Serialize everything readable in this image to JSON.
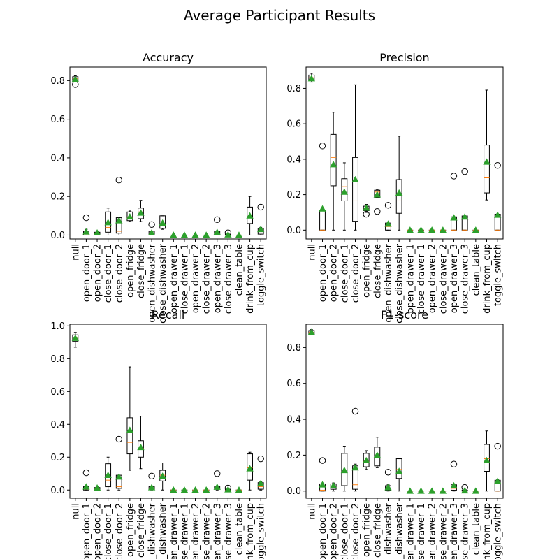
{
  "suptitle": "Average Participant Results",
  "colors": {
    "median": "#ff7f0e",
    "mean": "#2ca02c",
    "box": "#000000"
  },
  "categories": [
    "null",
    "open_door_1",
    "open_door_2",
    "close_door_1",
    "close_door_2",
    "open_fridge",
    "close_fridge",
    "open_dishwasher",
    "close_dishwasher",
    "open_drawer_1",
    "close_drawer_1",
    "open_drawer_2",
    "close_drawer_2",
    "open_drawer_3",
    "close_drawer_3",
    "clean_table",
    "drink_from_cup",
    "toggle_switch"
  ],
  "chart_data": [
    {
      "type": "boxplot",
      "title": "Accuracy",
      "ylim": [
        -0.02,
        0.87
      ],
      "yticks": [
        0.0,
        0.2,
        0.4,
        0.6,
        0.8
      ],
      "ytick_labels": [
        "0.0",
        "0.2",
        "0.4",
        "0.6",
        "0.8"
      ],
      "boxes": [
        {
          "q1": 0.8,
          "med": 0.81,
          "q3": 0.82,
          "wlo": 0.795,
          "whi": 0.825,
          "mean": 0.807,
          "fliers": [
            0.78
          ]
        },
        {
          "q1": 0.0,
          "med": 0.005,
          "q3": 0.02,
          "wlo": 0.0,
          "whi": 0.03,
          "mean": 0.017,
          "fliers": [
            0.09
          ]
        },
        {
          "q1": 0.005,
          "med": 0.01,
          "q3": 0.015,
          "wlo": 0.0,
          "whi": 0.02,
          "mean": 0.012,
          "fliers": []
        },
        {
          "q1": 0.015,
          "med": 0.04,
          "q3": 0.12,
          "wlo": 0.0,
          "whi": 0.14,
          "mean": 0.065,
          "fliers": []
        },
        {
          "q1": 0.01,
          "med": 0.02,
          "q3": 0.09,
          "wlo": 0.0,
          "whi": 0.09,
          "mean": 0.075,
          "fliers": [
            0.285
          ]
        },
        {
          "q1": 0.075,
          "med": 0.09,
          "q3": 0.12,
          "wlo": 0.07,
          "whi": 0.125,
          "mean": 0.095,
          "fliers": []
        },
        {
          "q1": 0.085,
          "med": 0.12,
          "q3": 0.14,
          "wlo": 0.07,
          "whi": 0.18,
          "mean": 0.115,
          "fliers": []
        },
        {
          "q1": 0.005,
          "med": 0.01,
          "q3": 0.02,
          "wlo": 0.0,
          "whi": 0.02,
          "mean": 0.012,
          "fliers": [
            0.055
          ]
        },
        {
          "q1": 0.035,
          "med": 0.05,
          "q3": 0.1,
          "wlo": 0.03,
          "whi": 0.1,
          "mean": 0.063,
          "fliers": []
        },
        {
          "q1": 0.0,
          "med": 0.0,
          "q3": 0.0,
          "wlo": 0.0,
          "whi": 0.0,
          "mean": 0.0,
          "fliers": []
        },
        {
          "q1": 0.0,
          "med": 0.0,
          "q3": 0.0,
          "wlo": 0.0,
          "whi": 0.0,
          "mean": 0.0,
          "fliers": []
        },
        {
          "q1": 0.0,
          "med": 0.0,
          "q3": 0.0,
          "wlo": 0.0,
          "whi": 0.0,
          "mean": 0.0,
          "fliers": []
        },
        {
          "q1": 0.0,
          "med": 0.0,
          "q3": 0.0,
          "wlo": 0.0,
          "whi": 0.0,
          "mean": 0.0,
          "fliers": []
        },
        {
          "q1": 0.005,
          "med": 0.01,
          "q3": 0.02,
          "wlo": 0.0,
          "whi": 0.02,
          "mean": 0.015,
          "fliers": [
            0.08
          ]
        },
        {
          "q1": 0.0,
          "med": 0.0,
          "q3": 0.005,
          "wlo": 0.0,
          "whi": 0.005,
          "mean": 0.002,
          "fliers": [
            0.012
          ]
        },
        {
          "q1": 0.0,
          "med": 0.0,
          "q3": 0.0,
          "wlo": 0.0,
          "whi": 0.0,
          "mean": 0.0,
          "fliers": []
        },
        {
          "q1": 0.06,
          "med": 0.09,
          "q3": 0.145,
          "wlo": 0.0,
          "whi": 0.2,
          "mean": 0.1,
          "fliers": []
        },
        {
          "q1": 0.005,
          "med": 0.02,
          "q3": 0.035,
          "wlo": 0.0,
          "whi": 0.04,
          "mean": 0.03,
          "fliers": [
            0.145
          ]
        }
      ]
    },
    {
      "type": "boxplot",
      "title": "Precision",
      "ylim": [
        -0.05,
        0.92
      ],
      "yticks": [
        0.0,
        0.2,
        0.4,
        0.6,
        0.8
      ],
      "ytick_labels": [
        "0.0",
        "0.2",
        "0.4",
        "0.6",
        "0.8"
      ],
      "boxes": [
        {
          "q1": 0.845,
          "med": 0.86,
          "q3": 0.875,
          "wlo": 0.835,
          "whi": 0.885,
          "mean": 0.855,
          "fliers": []
        },
        {
          "q1": 0.0,
          "med": 0.0,
          "q3": 0.11,
          "wlo": 0.0,
          "whi": 0.12,
          "mean": 0.12,
          "fliers": [
            0.475
          ]
        },
        {
          "q1": 0.25,
          "med": 0.41,
          "q3": 0.54,
          "wlo": 0.0,
          "whi": 0.665,
          "mean": 0.37,
          "fliers": []
        },
        {
          "q1": 0.165,
          "med": 0.245,
          "q3": 0.29,
          "wlo": 0.0,
          "whi": 0.38,
          "mean": 0.215,
          "fliers": []
        },
        {
          "q1": 0.05,
          "med": 0.165,
          "q3": 0.41,
          "wlo": 0.0,
          "whi": 0.82,
          "mean": 0.285,
          "fliers": []
        },
        {
          "q1": 0.11,
          "med": 0.125,
          "q3": 0.135,
          "wlo": 0.1,
          "whi": 0.145,
          "mean": 0.125,
          "fliers": [
            0.09
          ]
        },
        {
          "q1": 0.185,
          "med": 0.215,
          "q3": 0.225,
          "wlo": 0.185,
          "whi": 0.23,
          "mean": 0.2,
          "fliers": [
            0.105
          ]
        },
        {
          "q1": 0.0,
          "med": 0.02,
          "q3": 0.04,
          "wlo": 0.0,
          "whi": 0.04,
          "mean": 0.035,
          "fliers": [
            0.14
          ]
        },
        {
          "q1": 0.095,
          "med": 0.165,
          "q3": 0.285,
          "wlo": 0.0,
          "whi": 0.53,
          "mean": 0.21,
          "fliers": []
        },
        {
          "q1": 0.0,
          "med": 0.0,
          "q3": 0.0,
          "wlo": 0.0,
          "whi": 0.0,
          "mean": 0.0,
          "fliers": []
        },
        {
          "q1": 0.0,
          "med": 0.0,
          "q3": 0.0,
          "wlo": 0.0,
          "whi": 0.0,
          "mean": 0.0,
          "fliers": []
        },
        {
          "q1": 0.0,
          "med": 0.0,
          "q3": 0.0,
          "wlo": 0.0,
          "whi": 0.0,
          "mean": 0.0,
          "fliers": []
        },
        {
          "q1": 0.0,
          "med": 0.0,
          "q3": 0.0,
          "wlo": 0.0,
          "whi": 0.0,
          "mean": 0.0,
          "fliers": []
        },
        {
          "q1": 0.0,
          "med": 0.0,
          "q3": 0.075,
          "wlo": 0.0,
          "whi": 0.075,
          "mean": 0.07,
          "fliers": [
            0.305
          ]
        },
        {
          "q1": 0.0,
          "med": 0.0,
          "q3": 0.08,
          "wlo": 0.0,
          "whi": 0.08,
          "mean": 0.075,
          "fliers": [
            0.33
          ]
        },
        {
          "q1": 0.0,
          "med": 0.0,
          "q3": 0.0,
          "wlo": 0.0,
          "whi": 0.0,
          "mean": 0.0,
          "fliers": []
        },
        {
          "q1": 0.21,
          "med": 0.295,
          "q3": 0.48,
          "wlo": 0.17,
          "whi": 0.79,
          "mean": 0.385,
          "fliers": []
        },
        {
          "q1": 0.0,
          "med": 0.0,
          "q3": 0.09,
          "wlo": 0.0,
          "whi": 0.09,
          "mean": 0.085,
          "fliers": [
            0.365
          ]
        }
      ]
    },
    {
      "type": "boxplot",
      "title": "Recall",
      "ylim": [
        -0.05,
        1.01
      ],
      "yticks": [
        0.0,
        0.2,
        0.4,
        0.6,
        0.8,
        1.0
      ],
      "ytick_labels": [
        "0.0",
        "0.2",
        "0.4",
        "0.6",
        "0.8",
        "1.0"
      ],
      "boxes": [
        {
          "q1": 0.905,
          "med": 0.925,
          "q3": 0.945,
          "wlo": 0.87,
          "whi": 0.96,
          "mean": 0.925,
          "fliers": []
        },
        {
          "q1": 0.0,
          "med": 0.005,
          "q3": 0.02,
          "wlo": 0.0,
          "whi": 0.025,
          "mean": 0.02,
          "fliers": [
            0.105
          ]
        },
        {
          "q1": 0.005,
          "med": 0.01,
          "q3": 0.015,
          "wlo": 0.0,
          "whi": 0.02,
          "mean": 0.013,
          "fliers": []
        },
        {
          "q1": 0.02,
          "med": 0.06,
          "q3": 0.16,
          "wlo": 0.0,
          "whi": 0.2,
          "mean": 0.09,
          "fliers": []
        },
        {
          "q1": 0.01,
          "med": 0.02,
          "q3": 0.09,
          "wlo": 0.0,
          "whi": 0.09,
          "mean": 0.08,
          "fliers": [
            0.31
          ]
        },
        {
          "q1": 0.22,
          "med": 0.29,
          "q3": 0.44,
          "wlo": 0.12,
          "whi": 0.75,
          "mean": 0.365,
          "fliers": []
        },
        {
          "q1": 0.2,
          "med": 0.255,
          "q3": 0.3,
          "wlo": 0.13,
          "whi": 0.45,
          "mean": 0.26,
          "fliers": []
        },
        {
          "q1": 0.005,
          "med": 0.01,
          "q3": 0.02,
          "wlo": 0.0,
          "whi": 0.02,
          "mean": 0.015,
          "fliers": [
            0.085
          ]
        },
        {
          "q1": 0.055,
          "med": 0.09,
          "q3": 0.12,
          "wlo": 0.0,
          "whi": 0.165,
          "mean": 0.085,
          "fliers": []
        },
        {
          "q1": 0.0,
          "med": 0.0,
          "q3": 0.0,
          "wlo": 0.0,
          "whi": 0.0,
          "mean": 0.0,
          "fliers": []
        },
        {
          "q1": 0.0,
          "med": 0.0,
          "q3": 0.0,
          "wlo": 0.0,
          "whi": 0.0,
          "mean": 0.0,
          "fliers": []
        },
        {
          "q1": 0.0,
          "med": 0.0,
          "q3": 0.0,
          "wlo": 0.0,
          "whi": 0.0,
          "mean": 0.0,
          "fliers": []
        },
        {
          "q1": 0.0,
          "med": 0.0,
          "q3": 0.0,
          "wlo": 0.0,
          "whi": 0.0,
          "mean": 0.0,
          "fliers": []
        },
        {
          "q1": 0.005,
          "med": 0.01,
          "q3": 0.02,
          "wlo": 0.0,
          "whi": 0.02,
          "mean": 0.018,
          "fliers": [
            0.1
          ]
        },
        {
          "q1": 0.0,
          "med": 0.0,
          "q3": 0.005,
          "wlo": 0.0,
          "whi": 0.005,
          "mean": 0.002,
          "fliers": [
            0.012
          ]
        },
        {
          "q1": 0.0,
          "med": 0.0,
          "q3": 0.0,
          "wlo": 0.0,
          "whi": 0.0,
          "mean": 0.0,
          "fliers": []
        },
        {
          "q1": 0.06,
          "med": 0.135,
          "q3": 0.22,
          "wlo": 0.0,
          "whi": 0.23,
          "mean": 0.13,
          "fliers": []
        },
        {
          "q1": 0.005,
          "med": 0.02,
          "q3": 0.045,
          "wlo": 0.0,
          "whi": 0.05,
          "mean": 0.04,
          "fliers": [
            0.19
          ]
        }
      ]
    },
    {
      "type": "boxplot",
      "title": "F1-score",
      "ylim": [
        -0.04,
        0.93
      ],
      "yticks": [
        0.0,
        0.2,
        0.4,
        0.6,
        0.8
      ],
      "ytick_labels": [
        "0.0",
        "0.2",
        "0.4",
        "0.6",
        "0.8"
      ],
      "boxes": [
        {
          "q1": 0.875,
          "med": 0.885,
          "q3": 0.895,
          "wlo": 0.87,
          "whi": 0.9,
          "mean": 0.885,
          "fliers": []
        },
        {
          "q1": 0.0,
          "med": 0.005,
          "q3": 0.04,
          "wlo": 0.0,
          "whi": 0.045,
          "mean": 0.035,
          "fliers": [
            0.17
          ]
        },
        {
          "q1": 0.01,
          "med": 0.02,
          "q3": 0.04,
          "wlo": 0.0,
          "whi": 0.045,
          "mean": 0.03,
          "fliers": []
        },
        {
          "q1": 0.03,
          "med": 0.11,
          "q3": 0.21,
          "wlo": 0.0,
          "whi": 0.25,
          "mean": 0.115,
          "fliers": []
        },
        {
          "q1": 0.01,
          "med": 0.035,
          "q3": 0.14,
          "wlo": 0.0,
          "whi": 0.15,
          "mean": 0.13,
          "fliers": [
            0.445
          ]
        },
        {
          "q1": 0.135,
          "med": 0.165,
          "q3": 0.21,
          "wlo": 0.12,
          "whi": 0.225,
          "mean": 0.17,
          "fliers": []
        },
        {
          "q1": 0.14,
          "med": 0.19,
          "q3": 0.245,
          "wlo": 0.13,
          "whi": 0.3,
          "mean": 0.2,
          "fliers": []
        },
        {
          "q1": 0.005,
          "med": 0.01,
          "q3": 0.03,
          "wlo": 0.0,
          "whi": 0.035,
          "mean": 0.02,
          "fliers": [
            0.105
          ]
        },
        {
          "q1": 0.07,
          "med": 0.12,
          "q3": 0.18,
          "wlo": 0.0,
          "whi": 0.18,
          "mean": 0.11,
          "fliers": []
        },
        {
          "q1": 0.0,
          "med": 0.0,
          "q3": 0.0,
          "wlo": 0.0,
          "whi": 0.0,
          "mean": 0.0,
          "fliers": []
        },
        {
          "q1": 0.0,
          "med": 0.0,
          "q3": 0.0,
          "wlo": 0.0,
          "whi": 0.0,
          "mean": 0.0,
          "fliers": []
        },
        {
          "q1": 0.0,
          "med": 0.0,
          "q3": 0.0,
          "wlo": 0.0,
          "whi": 0.0,
          "mean": 0.0,
          "fliers": []
        },
        {
          "q1": 0.0,
          "med": 0.0,
          "q3": 0.0,
          "wlo": 0.0,
          "whi": 0.0,
          "mean": 0.0,
          "fliers": []
        },
        {
          "q1": 0.005,
          "med": 0.015,
          "q3": 0.035,
          "wlo": 0.0,
          "whi": 0.04,
          "mean": 0.03,
          "fliers": [
            0.15
          ]
        },
        {
          "q1": 0.0,
          "med": 0.0,
          "q3": 0.005,
          "wlo": 0.0,
          "whi": 0.005,
          "mean": 0.002,
          "fliers": [
            0.02
          ]
        },
        {
          "q1": 0.0,
          "med": 0.0,
          "q3": 0.0,
          "wlo": 0.0,
          "whi": 0.0,
          "mean": 0.0,
          "fliers": []
        },
        {
          "q1": 0.11,
          "med": 0.18,
          "q3": 0.26,
          "wlo": 0.0,
          "whi": 0.335,
          "mean": 0.17,
          "fliers": []
        },
        {
          "q1": 0.0,
          "med": 0.0,
          "q3": 0.06,
          "wlo": 0.0,
          "whi": 0.065,
          "mean": 0.055,
          "fliers": [
            0.25
          ]
        }
      ]
    }
  ]
}
